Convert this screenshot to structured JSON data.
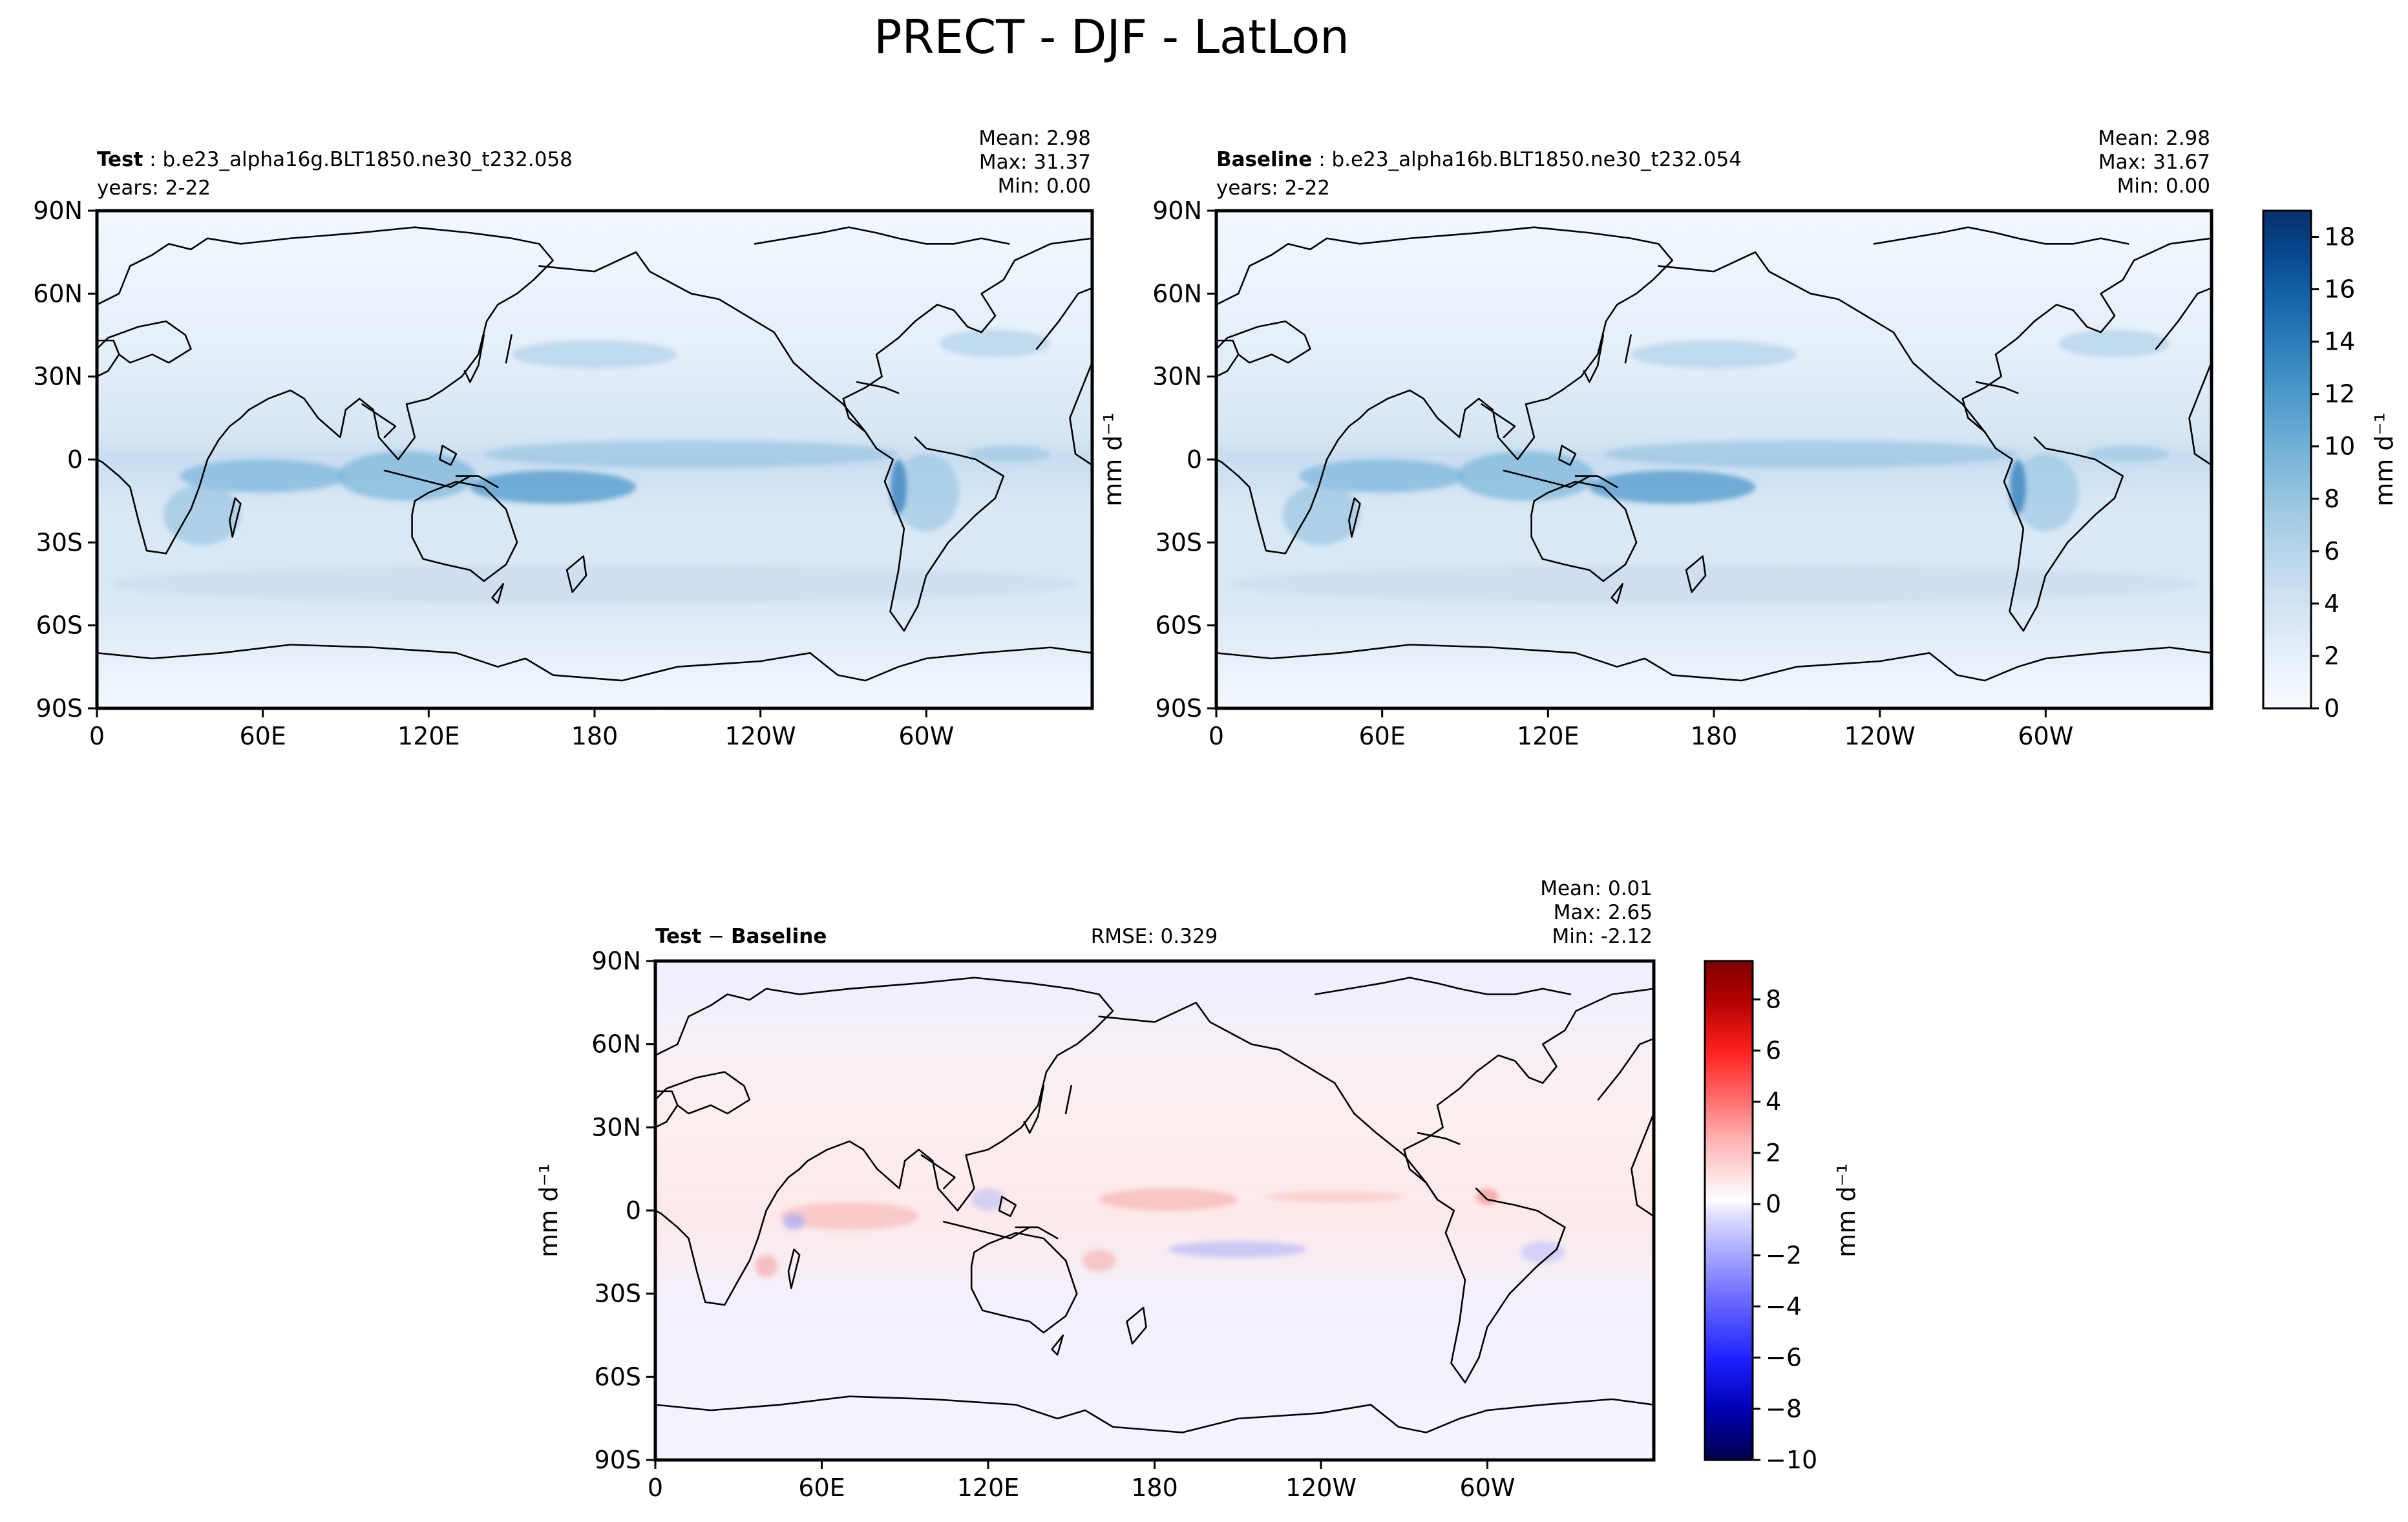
{
  "title": "PRECT - DJF - LatLon",
  "colors": {
    "frame": "#000000",
    "coast": "#000000",
    "blues": [
      "#f7fbff",
      "#e7f1fa",
      "#d3e4f3",
      "#bcd7eb",
      "#9dc9e1",
      "#7ab6d9",
      "#56a0ce",
      "#3787c0",
      "#1b6aaf",
      "#084d96",
      "#08306b"
    ],
    "diff": [
      "#00004c",
      "#0000b2",
      "#1f1fff",
      "#6f6fff",
      "#b4b4ff",
      "#e6e6ff",
      "#ffffff",
      "#ffe6e6",
      "#ffb4b4",
      "#ff6f6f",
      "#ff1f1f",
      "#b20000",
      "#7f0000"
    ]
  },
  "panels": {
    "test": {
      "label_bold": "Test",
      "label_rest": " : b.e23_alpha16g.BLT1850.ne30_t232.058",
      "years": "years: 2-22",
      "stats": {
        "mean": "Mean:  2.98",
        "max": "Max: 31.37",
        "min": "Min:  0.00"
      }
    },
    "baseline": {
      "label_bold": "Baseline",
      "label_rest": " : b.e23_alpha16b.BLT1850.ne30_t232.054",
      "years": "years: 2-22",
      "stats": {
        "mean": "Mean:  2.98",
        "max": "Max: 31.67",
        "min": "Min:  0.00"
      }
    },
    "diff": {
      "label_bold_1": "Test",
      "label_sep": " − ",
      "label_bold_2": "Baseline",
      "rmse": "RMSE: 0.329",
      "stats": {
        "mean": "Mean:  0.01",
        "max": "Max:  2.65",
        "min": "Min: -2.12"
      }
    }
  },
  "axes": {
    "lat_ticks": [
      "90N",
      "60N",
      "30N",
      "0",
      "30S",
      "60S",
      "90S"
    ],
    "lon_ticks": [
      "0",
      "60E",
      "120E",
      "180",
      "120W",
      "60W"
    ],
    "ylabel": "mm d⁻¹"
  },
  "colorbars": {
    "main": {
      "label": "mm d⁻¹",
      "ticks": [
        "0",
        "2",
        "4",
        "6",
        "8",
        "10",
        "12",
        "14",
        "16",
        "18"
      ],
      "range": [
        0,
        19
      ]
    },
    "diff": {
      "label": "mm d⁻¹",
      "ticks": [
        "−10",
        "−8",
        "−6",
        "−4",
        "−2",
        "0",
        "2",
        "4",
        "6",
        "8"
      ],
      "range": [
        -10,
        9.5
      ]
    }
  },
  "chart_data": {
    "type": "heatmap",
    "variable": "PRECT",
    "season": "DJF",
    "projection": "LatLon",
    "units": "mm d⁻¹",
    "panels": [
      {
        "name": "Test",
        "mean": 2.98,
        "max": 31.37,
        "min": 0.0
      },
      {
        "name": "Baseline",
        "mean": 2.98,
        "max": 31.67,
        "min": 0.0
      },
      {
        "name": "Test − Baseline",
        "mean": 0.01,
        "max": 2.65,
        "min": -2.12,
        "rmse": 0.329
      }
    ],
    "xlim": [
      0,
      360
    ],
    "ylim": [
      -90,
      90
    ]
  }
}
